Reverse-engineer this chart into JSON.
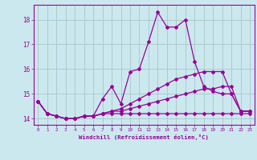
{
  "xlabel": "Windchill (Refroidissement éolien,°C)",
  "background_color": "#cce8ef",
  "grid_color": "#aacccc",
  "line_color": "#990099",
  "x_ticks": [
    0,
    1,
    2,
    3,
    4,
    5,
    6,
    7,
    8,
    9,
    10,
    11,
    12,
    13,
    14,
    15,
    16,
    17,
    18,
    19,
    20,
    21,
    22,
    23
  ],
  "ylim": [
    13.75,
    18.6
  ],
  "xlim": [
    -0.5,
    23.5
  ],
  "yticks": [
    14,
    15,
    16,
    17,
    18
  ],
  "series": {
    "line1": [
      14.7,
      14.2,
      14.1,
      14.0,
      14.0,
      14.1,
      14.1,
      14.8,
      15.3,
      14.6,
      15.9,
      16.0,
      17.1,
      18.3,
      17.7,
      17.7,
      18.0,
      16.3,
      15.3,
      15.1,
      15.0,
      15.0,
      14.3,
      14.3
    ],
    "line2": [
      14.7,
      14.2,
      14.1,
      14.0,
      14.0,
      14.1,
      14.1,
      14.2,
      14.3,
      14.4,
      14.6,
      14.8,
      15.0,
      15.2,
      15.4,
      15.6,
      15.7,
      15.8,
      15.9,
      15.9,
      15.9,
      15.0,
      14.3,
      14.3
    ],
    "line3": [
      14.7,
      14.2,
      14.1,
      14.0,
      14.0,
      14.1,
      14.1,
      14.2,
      14.3,
      14.3,
      14.4,
      14.5,
      14.6,
      14.7,
      14.8,
      14.9,
      15.0,
      15.1,
      15.2,
      15.2,
      15.3,
      15.3,
      14.3,
      14.3
    ],
    "line4": [
      14.7,
      14.2,
      14.1,
      14.0,
      14.0,
      14.1,
      14.1,
      14.2,
      14.2,
      14.2,
      14.2,
      14.2,
      14.2,
      14.2,
      14.2,
      14.2,
      14.2,
      14.2,
      14.2,
      14.2,
      14.2,
      14.2,
      14.2,
      14.2
    ]
  }
}
